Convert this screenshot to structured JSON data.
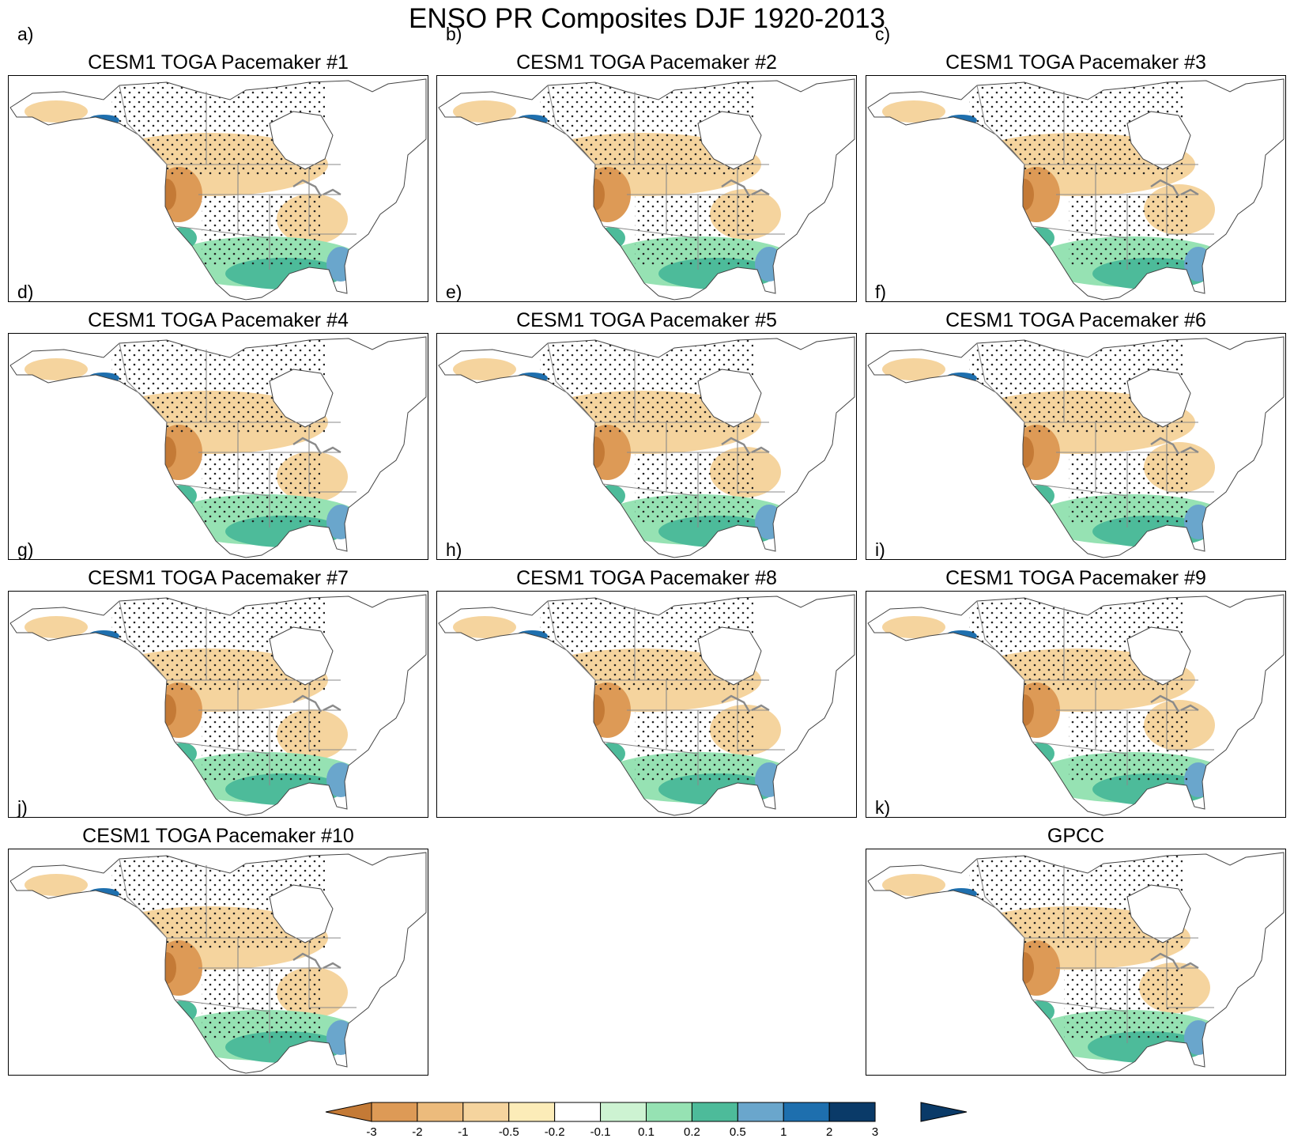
{
  "title": "ENSO PR Composites DJF 1920-2013",
  "panels": [
    {
      "title": "CESM1 TOGA Pacemaker #1",
      "letter": "a)"
    },
    {
      "title": "CESM1 TOGA Pacemaker #2",
      "letter": "b)"
    },
    {
      "title": "CESM1 TOGA Pacemaker #3",
      "letter": "c)"
    },
    {
      "title": "CESM1 TOGA Pacemaker #4",
      "letter": "d)"
    },
    {
      "title": "CESM1 TOGA Pacemaker #5",
      "letter": "e)"
    },
    {
      "title": "CESM1 TOGA Pacemaker #6",
      "letter": "f)"
    },
    {
      "title": "CESM1 TOGA Pacemaker #7",
      "letter": "g)"
    },
    {
      "title": "CESM1 TOGA Pacemaker #8",
      "letter": "h)"
    },
    {
      "title": "CESM1 TOGA Pacemaker #9",
      "letter": "i)"
    },
    {
      "title": "CESM1 TOGA Pacemaker #10",
      "letter": "j)"
    },
    {
      "title": "GPCC",
      "letter": "k)"
    }
  ],
  "colorbar": {
    "labels": [
      "-3",
      "-2",
      "-1",
      "-0.5",
      "-0.2",
      "-0.1",
      "0.1",
      "0.2",
      "0.5",
      "1",
      "2",
      "3"
    ],
    "colors": [
      "#c47a36",
      "#dd9a56",
      "#ecbb7c",
      "#f5d49e",
      "#fcecb8",
      "#ffffff",
      "#cdf3d2",
      "#96e2b3",
      "#4dbb9a",
      "#6aa6cc",
      "#1e6fae",
      "#0a3a68"
    ]
  },
  "colors": {
    "dry_strong": "#c47a36",
    "dry_mid": "#dd9a56",
    "dry_light": "#f5d49e",
    "wet_light": "#96e2b3",
    "wet_mid": "#4dbb9a",
    "wet_strong": "#6aa6cc",
    "wet_deep": "#1e6fae",
    "border": "#8a8a8a",
    "coast": "#444444"
  }
}
